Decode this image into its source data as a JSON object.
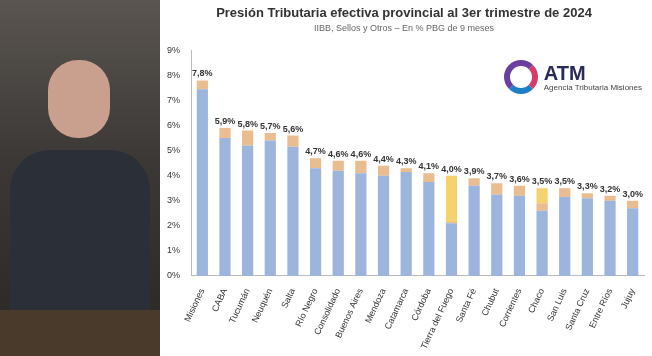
{
  "chart_data": {
    "type": "bar",
    "title": "Presión Tributaria efectiva provincial al 3er trimestre de 2024",
    "subtitle": "IIBB, Sellos y Otros – En % PBG de 9 meses",
    "logo": {
      "text": "ATM",
      "subtitle": "Agencia Tributaria Misiones"
    },
    "categories": [
      "Misiones",
      "CABA",
      "Tucumán",
      "Neuquén",
      "Salta",
      "Río Negro",
      "Consolidado",
      "Buenos Aires",
      "Mendoza",
      "Catamarca",
      "Córdoba",
      "Tierra del Fuego",
      "Santa Fé",
      "Chubut",
      "Corrientes",
      "Chaco",
      "San Luis",
      "Santa Cruz",
      "Entre Ríos",
      "Jujuy"
    ],
    "stacked": true,
    "series": [
      {
        "name": "IIBB",
        "color": "#9db4dc",
        "values": [
          7.45,
          5.5,
          5.2,
          5.4,
          5.15,
          4.3,
          4.2,
          4.1,
          4.0,
          4.15,
          3.75,
          2.1,
          3.6,
          3.25,
          3.2,
          2.6,
          3.15,
          3.1,
          3.0,
          2.7
        ]
      },
      {
        "name": "Sellos",
        "color": "#e9bd8f",
        "values": [
          0.35,
          0.4,
          0.6,
          0.3,
          0.45,
          0.4,
          0.4,
          0.5,
          0.4,
          0.15,
          0.35,
          0.05,
          0.3,
          0.45,
          0.4,
          0.3,
          0.35,
          0.2,
          0.2,
          0.3
        ]
      },
      {
        "name": "Otros",
        "color": "#f4d36e",
        "values": [
          0,
          0,
          0,
          0,
          0,
          0,
          0,
          0,
          0,
          0,
          0,
          1.85,
          0,
          0,
          0,
          0.6,
          0,
          0,
          0,
          0
        ]
      }
    ],
    "totals": [
      7.8,
      5.9,
      5.8,
      5.7,
      5.6,
      4.7,
      4.6,
      4.6,
      4.4,
      4.3,
      4.1,
      4.0,
      3.9,
      3.7,
      3.6,
      3.5,
      3.5,
      3.3,
      3.2,
      3.0
    ],
    "total_labels": [
      "7,8%",
      "5,9%",
      "5,8%",
      "5,7%",
      "5,6%",
      "4,7%",
      "4,6%",
      "4,6%",
      "4,4%",
      "4,3%",
      "4,1%",
      "4,0%",
      "3,9%",
      "3,7%",
      "3,6%",
      "3,5%",
      "3,5%",
      "3,3%",
      "3,2%",
      "3,0%"
    ],
    "ylim": [
      0,
      9
    ],
    "yticks": [
      {
        "value": 0,
        "label": "0%"
      },
      {
        "value": 1,
        "label": "1%"
      },
      {
        "value": 2,
        "label": "2%"
      },
      {
        "value": 3,
        "label": "3%"
      },
      {
        "value": 4,
        "label": "4%"
      },
      {
        "value": 5,
        "label": "5%"
      },
      {
        "value": 6,
        "label": "6%"
      },
      {
        "value": 7,
        "label": "7%"
      },
      {
        "value": 8,
        "label": "8%"
      },
      {
        "value": 9,
        "label": "9%"
      }
    ],
    "grid": false
  }
}
